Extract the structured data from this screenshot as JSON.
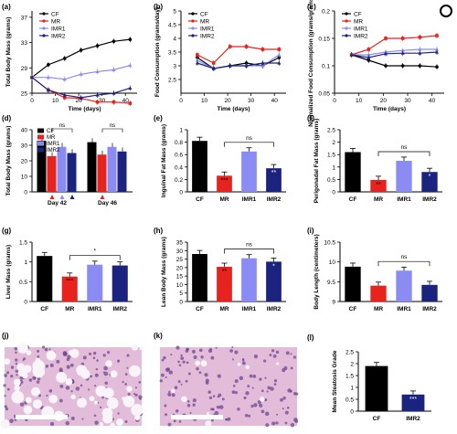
{
  "colors": {
    "CF": "#000000",
    "MR": "#e8221c",
    "IMR1": "#8a8cf4",
    "IMR2": "#1a237e",
    "tissue": "#d6a7c9"
  },
  "chart_data": [
    {
      "id": "a",
      "label": "(a)",
      "type": "line",
      "xlabel": "Time (days)",
      "ylabel": "Total Body Mass (grams)",
      "xlim": [
        0,
        45
      ],
      "ylim": [
        25,
        38
      ],
      "xticks": [
        0,
        10,
        20,
        30,
        40
      ],
      "yticks": [
        25,
        29,
        33,
        37
      ],
      "legend": [
        "CF",
        "MR",
        "IMR1",
        "IMR2"
      ],
      "x": [
        0,
        7,
        14,
        21,
        28,
        35,
        42
      ],
      "series": [
        {
          "name": "CF",
          "values": [
            27.5,
            29.5,
            30.5,
            31.8,
            32.5,
            33.2,
            33.5
          ]
        },
        {
          "name": "MR",
          "values": [
            27.5,
            25.5,
            24.3,
            24.2,
            23.6,
            23.6,
            23.4
          ]
        },
        {
          "name": "IMR1",
          "values": [
            27.5,
            27.5,
            27.2,
            28.0,
            28.4,
            28.7,
            29.4
          ]
        },
        {
          "name": "IMR2",
          "values": [
            27.5,
            25.5,
            24.7,
            24.3,
            24.7,
            25.0,
            25.8
          ]
        }
      ]
    },
    {
      "id": "b",
      "label": "(b)",
      "type": "line",
      "xlabel": "Time (days)",
      "ylabel": "Food Consumption (grams/day)",
      "xlim": [
        0,
        45
      ],
      "ylim": [
        2.0,
        5.0
      ],
      "xticks": [
        0,
        10,
        20,
        30,
        40
      ],
      "yticks": [
        2.5,
        3.0,
        3.5,
        4.0,
        4.5,
        5.0
      ],
      "legend": [
        "CF",
        "MR",
        "IMR1",
        "IMR2"
      ],
      "x": [
        7,
        14,
        21,
        28,
        35,
        42
      ],
      "series": [
        {
          "name": "CF",
          "values": [
            3.3,
            2.9,
            3.0,
            3.1,
            3.0,
            3.3
          ]
        },
        {
          "name": "MR",
          "values": [
            3.4,
            3.1,
            3.7,
            3.7,
            3.6,
            3.6
          ]
        },
        {
          "name": "IMR1",
          "values": [
            3.2,
            2.9,
            3.0,
            3.0,
            3.0,
            3.4
          ]
        },
        {
          "name": "IMR2",
          "values": [
            3.1,
            2.9,
            3.0,
            3.0,
            3.1,
            3.1
          ]
        }
      ]
    },
    {
      "id": "c",
      "label": "(c)",
      "type": "line",
      "xlabel": "Time (days)",
      "ylabel": "Normalized Food Consumption (grams/grams^BW/day)",
      "xlim": [
        0,
        45
      ],
      "ylim": [
        0.05,
        0.2
      ],
      "xticks": [
        0,
        10,
        20,
        30,
        40
      ],
      "yticks": [
        0.05,
        0.1,
        0.15,
        0.2
      ],
      "legend": [
        "CF",
        "MR",
        "IMR1",
        "IMR2"
      ],
      "x": [
        7,
        14,
        21,
        28,
        35,
        42
      ],
      "series": [
        {
          "name": "CF",
          "values": [
            0.12,
            0.11,
            0.1,
            0.1,
            0.1,
            0.098
          ]
        },
        {
          "name": "MR",
          "values": [
            0.12,
            0.13,
            0.15,
            0.15,
            0.152,
            0.155
          ]
        },
        {
          "name": "IMR1",
          "values": [
            0.12,
            0.12,
            0.125,
            0.128,
            0.13,
            0.13
          ]
        },
        {
          "name": "IMR2",
          "values": [
            0.12,
            0.115,
            0.122,
            0.123,
            0.123,
            0.125
          ]
        }
      ]
    },
    {
      "id": "d",
      "label": "(d)",
      "type": "bar",
      "ylabel": "Total Body Mass (grams)",
      "ylim": [
        0,
        40
      ],
      "yticks": [
        0,
        10,
        20,
        30,
        40
      ],
      "categories": [
        "Day 42",
        "Day 46"
      ],
      "legend": [
        "CF",
        "MR",
        "IMR1",
        "IMR2"
      ],
      "series": [
        {
          "name": "CF",
          "values": [
            33,
            32
          ]
        },
        {
          "name": "MR",
          "values": [
            23,
            24
          ]
        },
        {
          "name": "IMR1",
          "values": [
            29,
            29
          ]
        },
        {
          "name": "IMR2",
          "values": [
            25,
            26
          ]
        }
      ],
      "annotations": [
        "***",
        "**",
        "**",
        "***",
        "*",
        "ns",
        "ns"
      ]
    },
    {
      "id": "e",
      "label": "(e)",
      "type": "bar",
      "ylabel": "Inguinal Fat Mass (grams)",
      "ylim": [
        0,
        1.0
      ],
      "yticks": [
        0,
        0.2,
        0.4,
        0.6,
        0.8,
        1.0
      ],
      "categories": [
        "CF",
        "MR",
        "IMR1",
        "IMR2"
      ],
      "values": [
        0.82,
        0.26,
        0.65,
        0.38
      ],
      "sig": [
        "",
        "***",
        "",
        "**"
      ],
      "bracket": "ns"
    },
    {
      "id": "f",
      "label": "(f)",
      "type": "bar",
      "ylabel": "Perigonadal Fat Mass (grams)",
      "ylim": [
        0,
        2.5
      ],
      "yticks": [
        0,
        0.5,
        1.0,
        1.5,
        2.0,
        2.5
      ],
      "categories": [
        "CF",
        "MR",
        "IMR1",
        "IMR2"
      ],
      "values": [
        1.6,
        0.48,
        1.25,
        0.8
      ],
      "sig": [
        "",
        "**",
        "",
        "*"
      ],
      "bracket": "ns"
    },
    {
      "id": "g",
      "label": "(g)",
      "type": "bar",
      "ylabel": "Liver Mass (grams)",
      "ylim": [
        0,
        1.5
      ],
      "yticks": [
        0,
        0.5,
        1.0,
        1.5
      ],
      "categories": [
        "CF",
        "MR",
        "IMR1",
        "IMR2"
      ],
      "values": [
        1.15,
        0.63,
        0.93,
        0.91
      ],
      "sig": [
        "",
        "***",
        "",
        ""
      ],
      "bracket": "*"
    },
    {
      "id": "h",
      "label": "(h)",
      "type": "bar",
      "ylabel": "Lean Body Mass (grams)",
      "ylim": [
        0,
        35
      ],
      "yticks": [
        0,
        5,
        10,
        15,
        20,
        25,
        30,
        35
      ],
      "categories": [
        "CF",
        "MR",
        "IMR1",
        "IMR2"
      ],
      "values": [
        28,
        20.5,
        25.5,
        23.5
      ],
      "sig": [
        "",
        "**",
        "",
        "*"
      ],
      "bracket": "ns"
    },
    {
      "id": "i",
      "label": "(i)",
      "type": "bar",
      "ylabel": "Body Length (centimeters)",
      "ylim": [
        9.0,
        10.5
      ],
      "yticks": [
        9.0,
        9.5,
        10.0,
        10.5
      ],
      "categories": [
        "CF",
        "MR",
        "IMR1",
        "IMR2"
      ],
      "values": [
        9.88,
        9.4,
        9.78,
        9.42
      ],
      "sig": [
        "",
        "",
        "",
        ""
      ],
      "bracket": "ns"
    },
    {
      "id": "l",
      "label": "(l)",
      "type": "bar",
      "ylabel": "Mean Steatosis Grade",
      "ylim": [
        0,
        2.5
      ],
      "yticks": [
        0,
        0.5,
        1.0,
        1.5,
        2.0,
        2.5
      ],
      "categories": [
        "CF",
        "IMR2"
      ],
      "values": [
        1.9,
        0.7
      ],
      "sig": [
        "",
        "***"
      ]
    }
  ],
  "images": [
    {
      "id": "j",
      "label": "(j)",
      "icon": "histology-image-liver-steatosis"
    },
    {
      "id": "k",
      "label": "(k)",
      "icon": "histology-image-liver-normal"
    }
  ],
  "logo": "circle-icon"
}
